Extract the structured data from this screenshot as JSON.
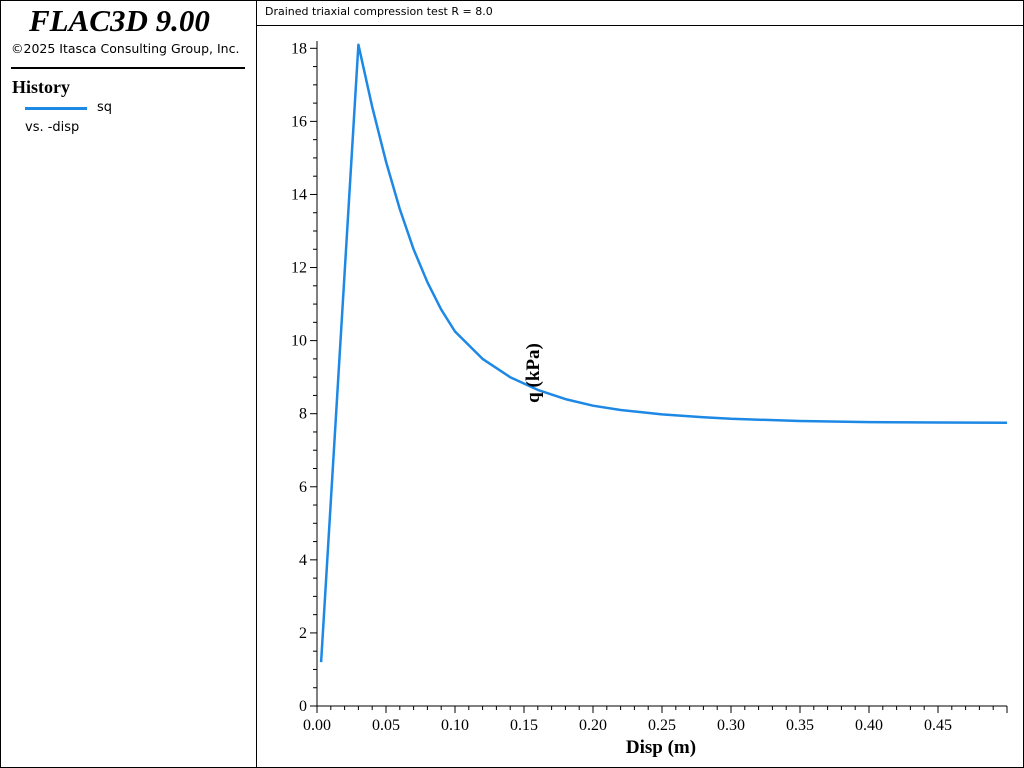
{
  "app": {
    "title": "FLAC3D 9.00",
    "copyright": "©2025 Itasca Consulting Group, Inc."
  },
  "legend": {
    "heading": "History",
    "series_name": "sq",
    "vs_label": "vs. -disp",
    "color": "#1e88e5"
  },
  "chart_data": {
    "type": "line",
    "title": "Drained triaxial compression test R = 8.0",
    "xlabel": "Disp (m)",
    "ylabel": "q (kPa)",
    "xlim": [
      0.0,
      0.5
    ],
    "ylim": [
      0,
      18.2
    ],
    "grid": false,
    "legend_placement": "left-panel",
    "x_ticks": [
      "0.00",
      "0.05",
      "0.10",
      "0.15",
      "0.20",
      "0.25",
      "0.30",
      "0.35",
      "0.40",
      "0.45"
    ],
    "y_ticks": [
      "0",
      "2",
      "4",
      "6",
      "8",
      "10",
      "12",
      "14",
      "16",
      "18"
    ],
    "series": [
      {
        "name": "sq",
        "color": "#1e88e5",
        "x": [
          0.003,
          0.03,
          0.04,
          0.05,
          0.06,
          0.07,
          0.08,
          0.09,
          0.1,
          0.12,
          0.14,
          0.16,
          0.18,
          0.2,
          0.22,
          0.25,
          0.28,
          0.3,
          0.35,
          0.4,
          0.45,
          0.5
        ],
        "y": [
          1.2,
          18.1,
          16.4,
          14.9,
          13.6,
          12.5,
          11.6,
          10.85,
          10.25,
          9.5,
          9.0,
          8.65,
          8.4,
          8.22,
          8.1,
          7.98,
          7.9,
          7.86,
          7.8,
          7.77,
          7.76,
          7.75
        ]
      }
    ]
  }
}
